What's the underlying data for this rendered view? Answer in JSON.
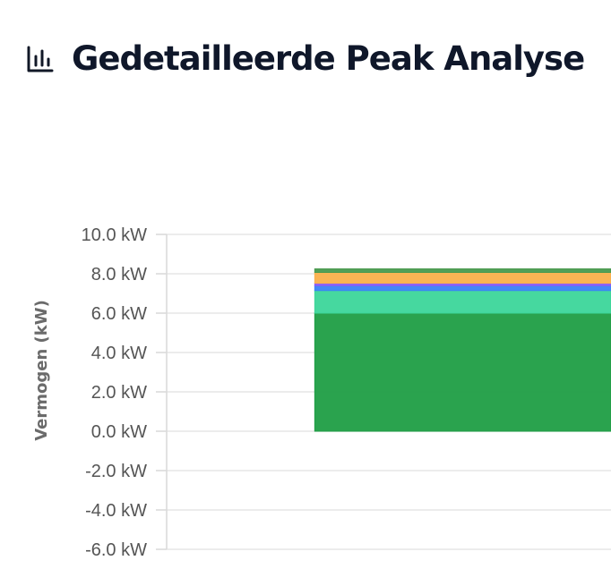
{
  "header": {
    "title": "Gedetailleerde Peak Analyse",
    "icon": "bar-chart-icon"
  },
  "colors": {
    "title": "#0f172a",
    "grid": "#e5e5e5",
    "tick_text": "#555555"
  },
  "chart_data": {
    "type": "area",
    "stacked": true,
    "ylabel": "Vermogen (kW)",
    "ylim": [
      -6.0,
      10.0
    ],
    "yticks": [
      10.0,
      8.0,
      6.0,
      4.0,
      2.0,
      0.0,
      -2.0,
      -4.0,
      -6.0
    ],
    "ytick_labels": [
      "10.0 kW",
      "8.0 kW",
      "6.0 kW",
      "4.0 kW",
      "2.0 kW",
      "0.0 kW",
      "-2.0 kW",
      "-4.0 kW",
      "-6.0 kW"
    ],
    "grid": true,
    "legend": "none",
    "x": [
      0,
      1
    ],
    "x_range": [
      -0.5,
      1
    ],
    "series": [
      {
        "values": [
          6.0,
          6.0
        ],
        "color": "#1f9e45"
      },
      {
        "values": [
          1.15,
          1.15
        ],
        "color": "#3cd69a"
      },
      {
        "values": [
          0.25,
          0.25
        ],
        "color": "#3b82f6"
      },
      {
        "values": [
          0.12,
          0.12
        ],
        "color": "#8b5cf6"
      },
      {
        "values": [
          0.55,
          0.55
        ],
        "color": "#fbb04b"
      },
      {
        "values": [
          0.18,
          0.18
        ],
        "color": "#4a9a4f"
      }
    ]
  }
}
